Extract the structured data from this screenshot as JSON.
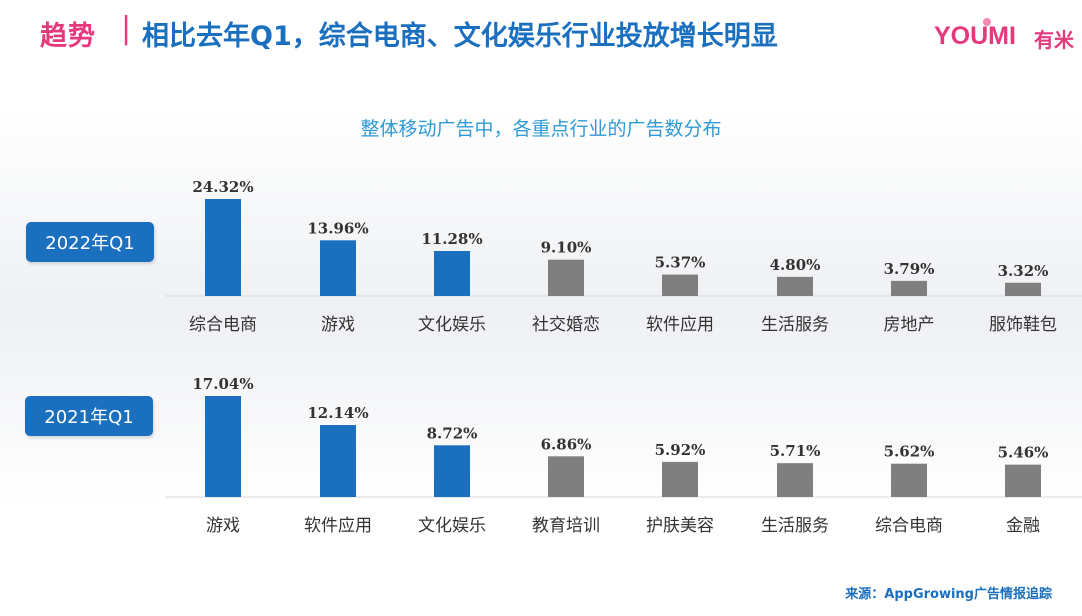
{
  "header": {
    "tag": "趋势",
    "separator": "|",
    "title": "相比去年Q1，综合电商、文化娱乐行业投放增长明显",
    "logo_text": "YOUMI",
    "logo_cn": "有米"
  },
  "subtitle": "整体移动广告中，各重点行业的广告数分布",
  "source": "来源：AppGrowing广告情报追踪",
  "colors": {
    "highlight": "#1b6fbf",
    "other": "#7f7f7f",
    "brand_pink": "#e5397d"
  },
  "chart_data": [
    {
      "type": "bar",
      "period": "2022年Q1",
      "categories": [
        "综合电商",
        "游戏",
        "文化娱乐",
        "社交婚恋",
        "软件应用",
        "生活服务",
        "房地产",
        "服饰鞋包"
      ],
      "values": [
        24.32,
        13.96,
        11.28,
        9.1,
        5.37,
        4.8,
        3.79,
        3.32
      ],
      "labels": [
        "24.32%",
        "13.96%",
        "11.28%",
        "9.10%",
        "5.37%",
        "4.80%",
        "3.79%",
        "3.32%"
      ],
      "highlight": [
        true,
        true,
        true,
        false,
        false,
        false,
        false,
        false
      ]
    },
    {
      "type": "bar",
      "period": "2021年Q1",
      "categories": [
        "游戏",
        "软件应用",
        "文化娱乐",
        "教育培训",
        "护肤美容",
        "生活服务",
        "综合电商",
        "金融"
      ],
      "values": [
        17.04,
        12.14,
        8.72,
        6.86,
        5.92,
        5.71,
        5.62,
        5.46
      ],
      "labels": [
        "17.04%",
        "12.14%",
        "8.72%",
        "6.86%",
        "5.92%",
        "5.71%",
        "5.62%",
        "5.46%"
      ],
      "highlight": [
        true,
        true,
        true,
        false,
        false,
        false,
        false,
        false
      ]
    }
  ]
}
